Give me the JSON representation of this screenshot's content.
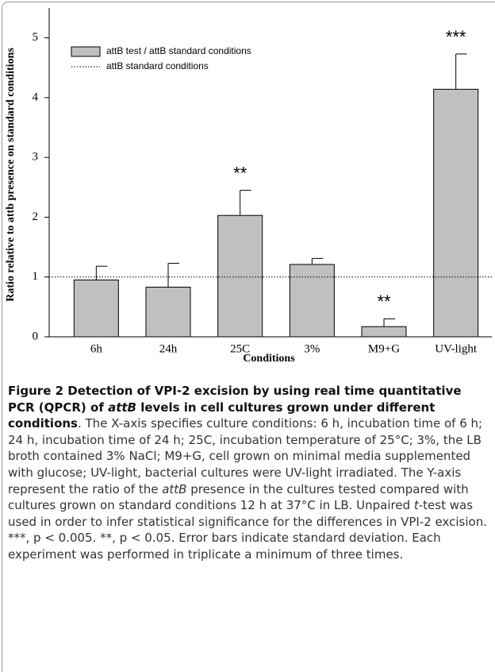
{
  "chart_data": {
    "type": "bar",
    "ylabel": "Ratio relative to attb presence on standard conditions",
    "xlabel": "Conditions",
    "categories": [
      "6h",
      "24h",
      "25C",
      "3%",
      "M9+G",
      "UV-light"
    ],
    "series": [
      {
        "name": "attB test / attB standard conditions",
        "color": "#c0c0c0",
        "values": [
          0.95,
          0.83,
          2.03,
          1.21,
          0.17,
          4.14
        ],
        "errors": [
          0.23,
          0.4,
          0.42,
          0.1,
          0.13,
          0.59
        ]
      }
    ],
    "reference_line": {
      "name": "attB standard conditions",
      "value": 1
    },
    "annotations": [
      {
        "text": "**",
        "category": "25C"
      },
      {
        "text": "**",
        "category": "M9+G"
      },
      {
        "text": "***",
        "category": "UV-light"
      }
    ],
    "ylim": [
      0,
      5.5
    ],
    "yticks": [
      0,
      1,
      2,
      3,
      4,
      5
    ],
    "legend": "upper left",
    "grid": false
  },
  "caption": {
    "label": "Figure 2",
    "title": [
      {
        "text": " Detection of VPI-2 excision by using real time quantitative PCR (QPCR) of "
      },
      {
        "text": "attB",
        "italic": true
      },
      {
        "text": " levels in cell cultures grown under different conditions"
      }
    ],
    "body": [
      {
        "text": ". The X-axis specifies culture conditions: 6 h, incubation time of 6 h; 24 h, incubation time of 24 h; 25C, incubation temperature of 25°C; 3%, the LB broth contained 3% NaCl; M9+G, cell grown on minimal media supplemented with glucose; UV-light, bacterial cultures were UV-light irradiated. The Y-axis represent the ratio of the "
      },
      {
        "text": "attB",
        "italic": true
      },
      {
        "text": " presence in the cultures tested compared with cultures grown on standard conditions 12 h at 37°C in LB. Unpaired "
      },
      {
        "text": "t",
        "italic": true
      },
      {
        "text": "-test was used in order to infer statistical significance for the differences in VPI-2 excision. ***, p < 0.005. **, p < 0.05. Error bars indicate standard deviation. Each experiment was performed in triplicate a minimum of three times."
      }
    ]
  }
}
